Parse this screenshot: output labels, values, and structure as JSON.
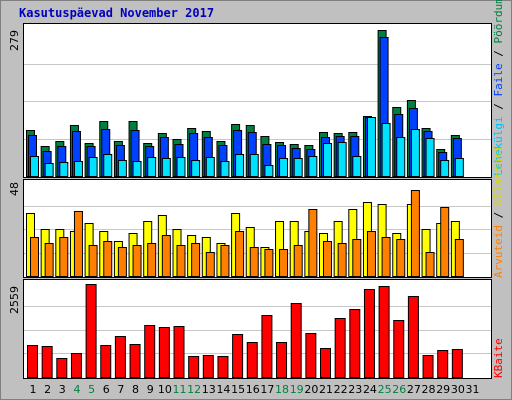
{
  "title": "Kasutuspäevad November 2017",
  "colors": {
    "hits": "#008040",
    "files": "#0040ff",
    "pages": "#00e0ff",
    "visits": "#ffff00",
    "sites": "#ff8000",
    "kbytes": "#ff0000",
    "weekend": "#008040",
    "weekday": "#000000",
    "title": "#0000c0"
  },
  "legend_top": {
    "hits": "Pöördumisi",
    "sep1": " / ",
    "files": "Faile",
    "sep2": " / ",
    "pages": "Lehekülgi"
  },
  "legend_mid": {
    "visits": "Külastusi",
    "sep": " / ",
    "sites": "Arvuteid"
  },
  "legend_bot": {
    "kbytes": "KBaite"
  },
  "chart_data": {
    "type": "bar",
    "title": "Kasutuspäevad November 2017",
    "categories": [
      "1",
      "2",
      "3",
      "4",
      "5",
      "6",
      "7",
      "8",
      "9",
      "10",
      "11",
      "12",
      "13",
      "14",
      "15",
      "16",
      "17",
      "18",
      "19",
      "20",
      "21",
      "22",
      "23",
      "24",
      "25",
      "26",
      "27",
      "28",
      "29",
      "30",
      "31"
    ],
    "weekend_days": [
      "4",
      "5",
      "11",
      "12",
      "18",
      "19",
      "25",
      "26"
    ],
    "panels": [
      {
        "name": "requests",
        "ylim": [
          0,
          279
        ],
        "ytick_label": "279",
        "series": [
          {
            "key": "hits",
            "values": [
              85,
              55,
              65,
              95,
              62,
              102,
              65,
              102,
              62,
              80,
              68,
              90,
              83,
              65,
              96,
              94,
              74,
              63,
              60,
              58,
              82,
              80,
              82,
              112,
              272,
              128,
              142,
              90,
              50,
              77,
              0
            ]
          },
          {
            "key": "files",
            "values": [
              76,
              47,
              56,
              84,
              55,
              87,
              57,
              85,
              55,
              73,
              60,
              80,
              72,
              58,
              86,
              82,
              60,
              58,
              53,
              50,
              73,
              75,
              75,
              110,
              259,
              115,
              127,
              83,
              45,
              70,
              0
            ]
          },
          {
            "key": "pages",
            "values": [
              38,
              24,
              26,
              28,
              36,
              40,
              30,
              28,
              36,
              33,
              35,
              30,
              35,
              28,
              40,
              40,
              20,
              33,
              34,
              38,
              62,
              64,
              38,
              110,
              98,
              72,
              87,
              70,
              30,
              33,
              0
            ]
          }
        ]
      },
      {
        "name": "visits",
        "ylim": [
          0,
          48
        ],
        "ytick_label": "48",
        "series": [
          {
            "key": "visits",
            "values": [
              32,
              24,
              24,
              23,
              27,
              23,
              18,
              22,
              28,
              31,
              24,
              21,
              20,
              17,
              32,
              25,
              15,
              28,
              28,
              23,
              22,
              28,
              34,
              38,
              37,
              22,
              37,
              24,
              27,
              28,
              0
            ]
          },
          {
            "key": "sites",
            "values": [
              20,
              17,
              20,
              33,
              16,
              18,
              15,
              16,
              17,
              21,
              16,
              17,
              12,
              16,
              23,
              15,
              14,
              14,
              16,
              34,
              18,
              17,
              19,
              23,
              20,
              19,
              44,
              12,
              35,
              19,
              0
            ]
          }
        ]
      },
      {
        "name": "kbytes",
        "ylim": [
          0,
          2559
        ],
        "ytick_label": "2559",
        "series": [
          {
            "key": "kbytes",
            "values": [
              870,
              830,
              500,
              640,
              2500,
              870,
              1110,
              880,
              1410,
              1350,
              1380,
              570,
              590,
              560,
              1160,
              940,
              1660,
              950,
              2000,
              1180,
              780,
              1600,
              1820,
              2360,
              2460,
              1540,
              2180,
              580,
              720,
              760,
              0
            ]
          }
        ]
      }
    ]
  }
}
